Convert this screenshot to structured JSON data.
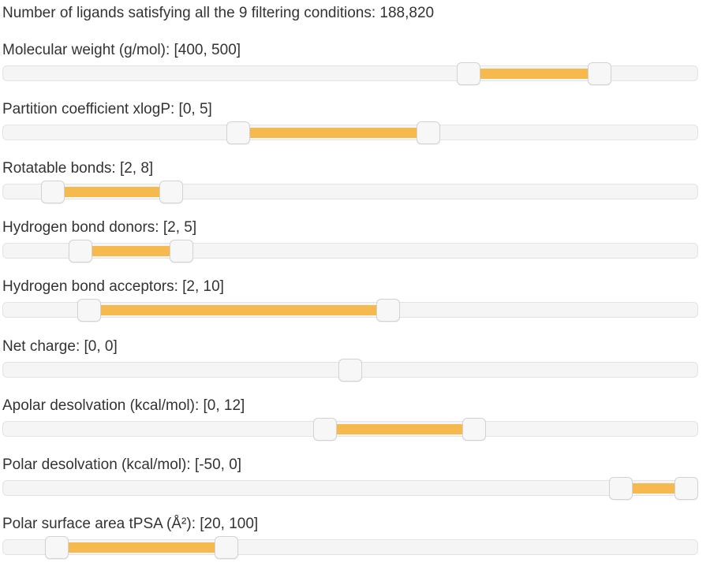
{
  "summary": {
    "text": "Number of ligands satisfying all the 9 filtering conditions: 188,820"
  },
  "colors": {
    "range_fill": "#f6b94d",
    "track": "#f5f5f5",
    "handle": "#f7f7f7"
  },
  "filters": [
    {
      "label": "Molecular weight (g/mol): [400, 500]",
      "low_fraction": 0.676,
      "high_fraction": 0.871
    },
    {
      "label": "Partition coefficient xlogP: [0, 5]",
      "low_fraction": 0.333,
      "high_fraction": 0.616
    },
    {
      "label": "Rotatable bonds: [2, 8]",
      "low_fraction": 0.058,
      "high_fraction": 0.233
    },
    {
      "label": "Hydrogen bond donors: [2, 5]",
      "low_fraction": 0.099,
      "high_fraction": 0.249
    },
    {
      "label": "Hydrogen bond acceptors: [2, 10]",
      "low_fraction": 0.111,
      "high_fraction": 0.556
    },
    {
      "label": "Net charge: [0, 0]",
      "low_fraction": 0.5,
      "high_fraction": 0.5
    },
    {
      "label": "Apolar desolvation (kcal/mol): [0, 12]",
      "low_fraction": 0.462,
      "high_fraction": 0.684
    },
    {
      "label": "Polar desolvation (kcal/mol): [-50, 0]",
      "low_fraction": 0.902,
      "high_fraction": 1.0
    },
    {
      "label": "Polar surface area tPSA (Å²): [20, 100]",
      "low_fraction": 0.063,
      "high_fraction": 0.316
    }
  ]
}
